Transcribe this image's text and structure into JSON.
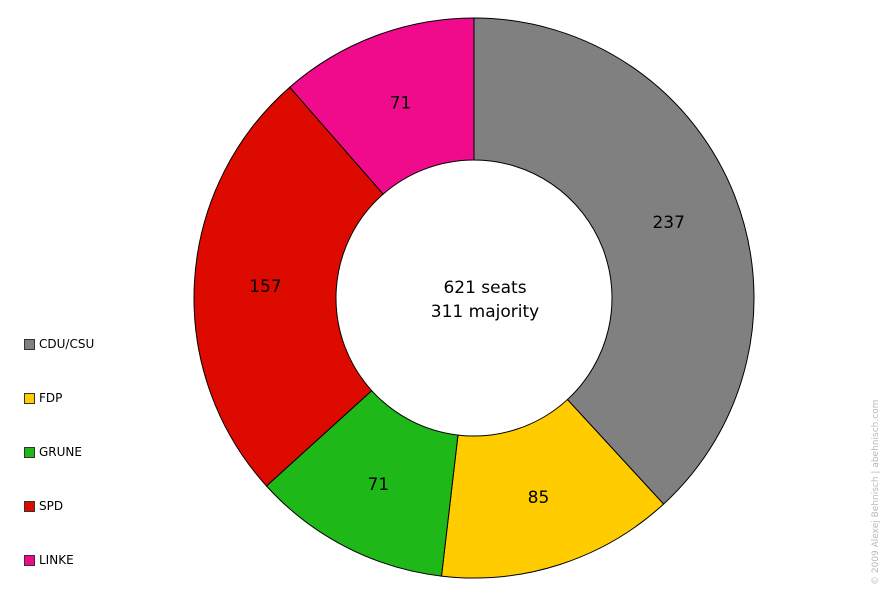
{
  "chart_data": {
    "type": "pie",
    "style": "donut",
    "center_text": [
      "621 seats",
      "311 majority"
    ],
    "legend_position": "left",
    "slices": [
      {
        "name": "CDU/CSU",
        "value": 237,
        "color": "#808080"
      },
      {
        "name": "FDP",
        "value": 85,
        "color": "#FFCC00"
      },
      {
        "name": "GRUNE",
        "value": 71,
        "color": "#1FB819"
      },
      {
        "name": "SPD",
        "value": 157,
        "color": "#DD0A00"
      },
      {
        "name": "LINKE",
        "value": 71,
        "color": "#F00A8C"
      }
    ]
  },
  "credit": "© 2009 Alexej Behnisch | abehnisch.com"
}
